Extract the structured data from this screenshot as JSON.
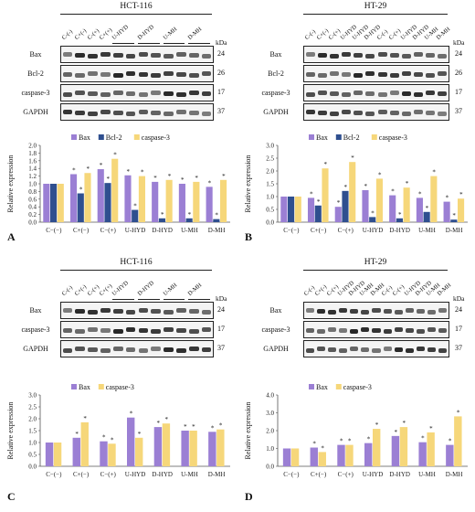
{
  "panels": [
    {
      "id": "A",
      "title": "HCT-116",
      "lanes": [
        "C-(-)",
        "C+(-)",
        "C-(+)",
        "C+(+)",
        "U-HYD",
        "",
        "D-HYD",
        "",
        "U-MH",
        "",
        "D-MH",
        ""
      ],
      "groupLanes": [
        4,
        6,
        8,
        10
      ],
      "kda_label": "kDa",
      "blots": [
        {
          "name": "Bax",
          "kda": "24"
        },
        {
          "name": "Bcl-2",
          "kda": "26"
        },
        {
          "name": "caspase-3",
          "kda": "17"
        },
        {
          "name": "GAPDH",
          "kda": "37"
        }
      ],
      "panel_label": "A"
    },
    {
      "id": "B",
      "title": "HT-29",
      "lanes": [
        "C-(-)",
        "C+(-)",
        "C-(+)",
        "U-HYD",
        "U-HYD",
        "D-HYD",
        "C-(-)",
        "C-(+)",
        "U-HYD",
        "D-HYD",
        "U-MH",
        "D-MH"
      ],
      "groupLanes": [],
      "kda_label": "kDa",
      "blots": [
        {
          "name": "Bax",
          "kda": "24"
        },
        {
          "name": "Bcl-2",
          "kda": "26"
        },
        {
          "name": "caspase-3",
          "kda": "17"
        },
        {
          "name": "GAPDH",
          "kda": "37"
        }
      ],
      "panel_label": "B"
    },
    {
      "id": "C",
      "title": "HCT-116",
      "lanes": [
        "C-(-)",
        "C+(-)",
        "C-(+)",
        "C+(+)",
        "U-HYD",
        "",
        "D-HYD",
        "",
        "U-MH",
        "",
        "D-MH",
        ""
      ],
      "groupLanes": [
        4,
        6,
        8,
        10
      ],
      "kda_label": "kDa",
      "blots": [
        {
          "name": "Bax",
          "kda": "24"
        },
        {
          "name": "caspase-3",
          "kda": "17"
        },
        {
          "name": "GAPDH",
          "kda": "37"
        }
      ],
      "panel_label": "C"
    },
    {
      "id": "D",
      "title": "HT-29",
      "lanes": [
        "C-(-)",
        "C+(-)",
        "C-(+)",
        "U-HYD",
        "D-HYD",
        "U-MH",
        "D-MH",
        "C-(-)",
        "C-(+)",
        "U-HYD",
        "D-HYD",
        "U-MH",
        "D-MH"
      ],
      "groupLanes": [],
      "kda_label": "kDa",
      "blots": [
        {
          "name": "Bax",
          "kda": "24"
        },
        {
          "name": "caspase-3",
          "kda": "17"
        },
        {
          "name": "GAPDH",
          "kda": "37"
        }
      ],
      "panel_label": "D"
    }
  ],
  "colors": {
    "Bax": "#9b7fd4",
    "Bcl-2": "#2f4f8f",
    "caspase-3": "#f6d77a"
  },
  "chart_data": [
    {
      "type": "bar",
      "categories": [
        "C−(−)",
        "C+(−)",
        "C−(+)",
        "U-HYD",
        "D-HYD",
        "U-MH",
        "D-MH"
      ],
      "ylabel": "Relative expression",
      "ylim": [
        0,
        2.0
      ],
      "yticks": [
        "0.0",
        "0.2",
        "0.4",
        "0.6",
        "0.8",
        "1.0",
        "1.2",
        "1.4",
        "1.6",
        "1.8",
        "2.0"
      ],
      "series": [
        {
          "name": "Bax",
          "values": [
            1.0,
            1.25,
            1.38,
            1.22,
            1.05,
            1.0,
            0.92
          ]
        },
        {
          "name": "Bcl-2",
          "values": [
            1.0,
            0.75,
            1.02,
            0.32,
            0.1,
            0.1,
            0.08
          ]
        },
        {
          "name": "caspase-3",
          "values": [
            1.0,
            1.28,
            1.65,
            1.2,
            1.1,
            1.05,
            1.1
          ]
        }
      ]
    },
    {
      "type": "bar",
      "categories": [
        "C−(−)",
        "C+(−)",
        "C−(+)",
        "U-HYD",
        "D-HYD",
        "U-MH",
        "D-MH"
      ],
      "ylabel": "Relative expression",
      "ylim": [
        0,
        3.0
      ],
      "yticks": [
        "0.0",
        "0.5",
        "1.0",
        "1.5",
        "2.0",
        "2.5",
        "3.0"
      ],
      "series": [
        {
          "name": "Bax",
          "values": [
            1.0,
            0.95,
            0.6,
            1.25,
            1.05,
            0.95,
            0.8
          ]
        },
        {
          "name": "Bcl-2",
          "values": [
            1.0,
            0.65,
            1.22,
            0.2,
            0.15,
            0.4,
            0.1
          ]
        },
        {
          "name": "caspase-3",
          "values": [
            1.0,
            2.1,
            2.35,
            1.7,
            1.35,
            1.8,
            0.92
          ]
        }
      ]
    },
    {
      "type": "bar",
      "categories": [
        "C−(−)",
        "C+(−)",
        "C−(+)",
        "U-HYD",
        "D-HYD",
        "U-MH",
        "D-MH"
      ],
      "ylabel": "Relative expression",
      "ylim": [
        0,
        3.0
      ],
      "yticks": [
        "0.0",
        "0.5",
        "1.0",
        "1.5",
        "2.0",
        "2.5",
        "3.0"
      ],
      "series": [
        {
          "name": "Bax",
          "values": [
            1.0,
            1.2,
            1.05,
            2.05,
            1.65,
            1.5,
            1.45
          ]
        },
        {
          "name": "caspase-3",
          "values": [
            1.0,
            1.85,
            0.95,
            1.2,
            1.8,
            1.5,
            1.55
          ]
        }
      ]
    },
    {
      "type": "bar",
      "categories": [
        "C−(−)",
        "C+(−)",
        "C−(+)",
        "U-HYD",
        "D-HYD",
        "U-MH",
        "D-MH"
      ],
      "ylabel": "Relative expression",
      "ylim": [
        0,
        4.0
      ],
      "yticks": [
        "0.0",
        "1.0",
        "2.0",
        "3.0",
        "4.0"
      ],
      "series": [
        {
          "name": "Bax",
          "values": [
            1.0,
            1.05,
            1.2,
            1.3,
            1.7,
            1.35,
            1.2
          ]
        },
        {
          "name": "caspase-3",
          "values": [
            1.0,
            0.8,
            1.2,
            2.1,
            2.2,
            1.9,
            2.8
          ]
        }
      ]
    }
  ]
}
